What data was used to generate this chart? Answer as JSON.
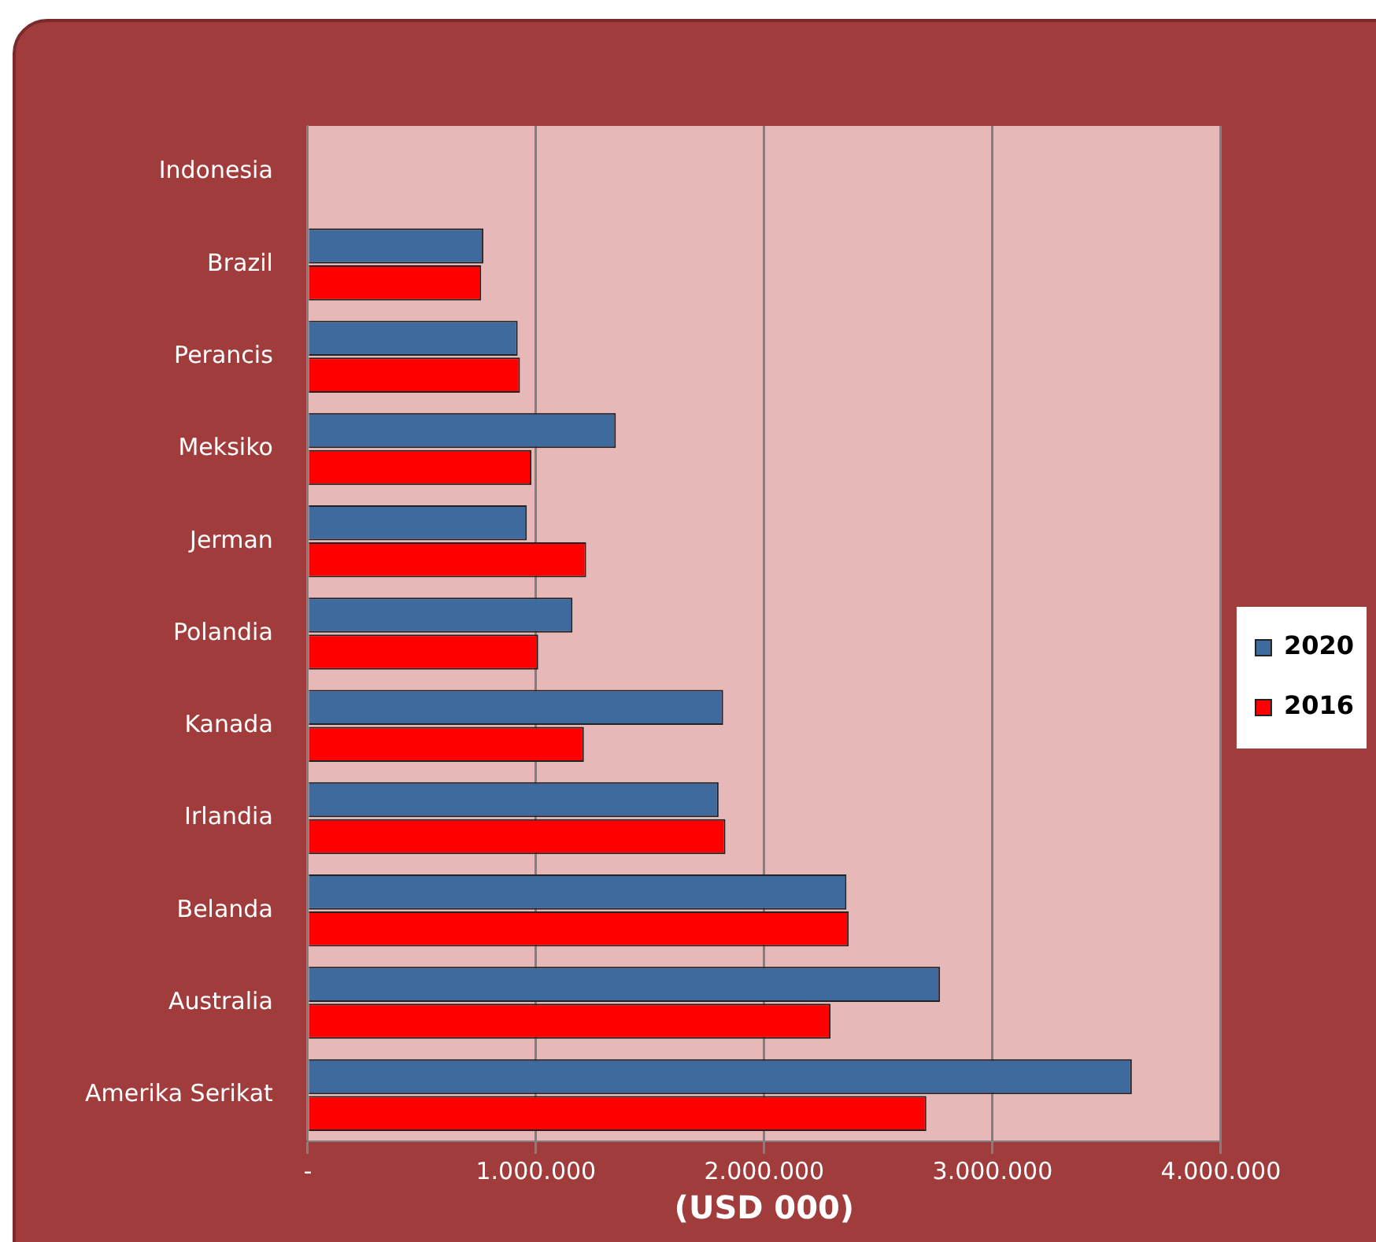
{
  "chart_data": {
    "type": "bar",
    "orientation": "horizontal",
    "xlabel": "(USD 000)",
    "categories": [
      "Indonesia",
      "Brazil",
      "Perancis",
      "Meksiko",
      "Jerman",
      "Polandia",
      "Kanada",
      "Irlandia",
      "Belanda",
      "Australia",
      "Amerika Serikat"
    ],
    "series": [
      {
        "name": "2020",
        "color": "#3f6a9e",
        "values": [
          null,
          770000,
          920000,
          1350000,
          960000,
          1160000,
          1820000,
          1800000,
          2360000,
          2770000,
          3610000
        ]
      },
      {
        "name": "2016",
        "color": "#ff0000",
        "values": [
          null,
          760000,
          930000,
          980000,
          1220000,
          1010000,
          1210000,
          1830000,
          2370000,
          2290000,
          2710000
        ]
      }
    ],
    "xlim": [
      0,
      4000000
    ],
    "xticks": [
      {
        "value": 0,
        "label": "-"
      },
      {
        "value": 1000000,
        "label": "1.000.000"
      },
      {
        "value": 2000000,
        "label": "2.000.000"
      },
      {
        "value": 3000000,
        "label": "3.000.000"
      },
      {
        "value": 4000000,
        "label": "4.000.000"
      }
    ],
    "grid": "x",
    "legend": "right"
  }
}
